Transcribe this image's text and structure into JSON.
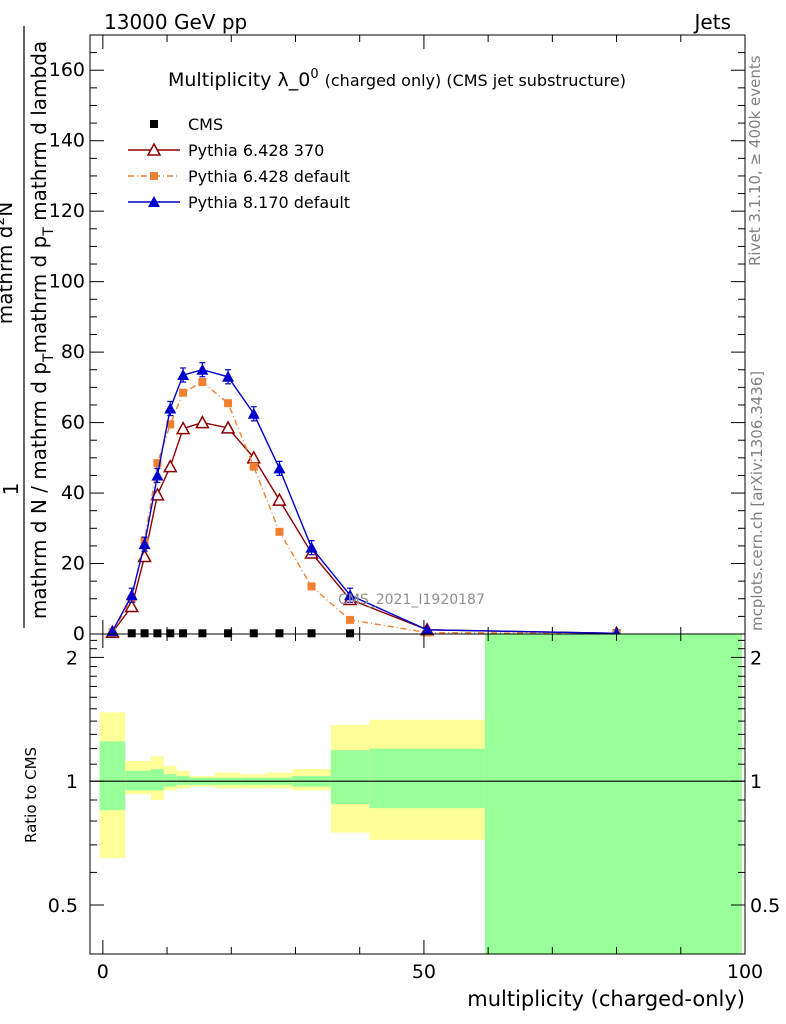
{
  "header": {
    "left": "13000 GeV pp",
    "right": "Jets"
  },
  "side_labels": {
    "rivet": "Rivet 3.1.10, ≥ 400k events",
    "mcplots": "mcplots.cern.ch [arXiv:1306.3436]"
  },
  "watermark": "CMS_2021_I1920187",
  "chart_data": [
    {
      "type": "line",
      "title_main": "Multiplicity λ_0",
      "title_sup": "0",
      "title_rest": "(charged only) (CMS jet substructure)",
      "ylabel_top": "1",
      "ylabel_numer": "mathrm d",
      "ylabel_numer_sup": "2",
      "ylabel_numer_tail": "N",
      "ylabel_denom": "mathrm d p",
      "ylabel_denom_sub": "T",
      "ylabel_denom_tail": " mathrm d lambda",
      "ylabel_left": "mathrm d N / mathrm d p",
      "ylabel_left_sub": "T",
      "ylabel_left_tail": "mathrm d p",
      "xlim": [
        -2,
        100
      ],
      "ylim": [
        0,
        170
      ],
      "yticks": [
        0,
        20,
        40,
        60,
        80,
        100,
        120,
        140,
        160
      ],
      "series": [
        {
          "name": "CMS",
          "color": "#000000",
          "marker": "square",
          "x": [
            4.5,
            6.5,
            8.5,
            10.5,
            12.5,
            15.5,
            19.5,
            23.5,
            27.5,
            32.5,
            38.5,
            80.0
          ],
          "y": [
            0.2,
            0.2,
            0.2,
            0.2,
            0.2,
            0.2,
            0.2,
            0.2,
            0.2,
            0.2,
            0.2,
            0.2
          ]
        },
        {
          "name": "Pythia 6.428 370",
          "color": "#8b0000",
          "marker": "open-triangle",
          "x": [
            1.5,
            4.5,
            6.5,
            8.5,
            10.5,
            12.5,
            15.5,
            19.5,
            23.5,
            27.5,
            32.5,
            38.5,
            50.5,
            80.0
          ],
          "y": [
            0.5,
            7.8,
            22.0,
            39.5,
            47.5,
            58.3,
            60.0,
            58.5,
            50.0,
            38.0,
            23.0,
            9.8,
            1.2,
            0.2
          ]
        },
        {
          "name": "Pythia 6.428 default",
          "color": "#f08030",
          "marker": "square",
          "x": [
            1.5,
            4.5,
            6.5,
            8.5,
            10.5,
            12.5,
            15.5,
            19.5,
            23.5,
            27.5,
            32.5,
            38.5,
            50.5,
            80.0
          ],
          "y": [
            0.5,
            10.0,
            26.5,
            48.5,
            59.5,
            68.5,
            71.5,
            65.5,
            47.5,
            29.0,
            13.5,
            4.0,
            0.4,
            0.1
          ]
        },
        {
          "name": "Pythia 8.170 default",
          "color": "#0000cc",
          "marker": "filled-triangle",
          "x": [
            1.5,
            4.5,
            6.5,
            8.5,
            10.5,
            12.5,
            15.5,
            19.5,
            23.5,
            27.5,
            32.5,
            38.5,
            50.5,
            80.0
          ],
          "y": [
            0.8,
            11.0,
            25.5,
            45.0,
            64.0,
            73.5,
            75.0,
            73.0,
            62.5,
            47.0,
            24.5,
            11.0,
            1.2,
            0.2
          ]
        }
      ]
    },
    {
      "type": "area",
      "title": "",
      "xlabel": "multiplicity (charged-only)",
      "ylabel": "Ratio to CMS",
      "xlim": [
        -2,
        100
      ],
      "ylim": [
        0.38,
        2.28
      ],
      "xticks": [
        0,
        50,
        100
      ],
      "yticks": [
        0.5,
        1,
        2
      ],
      "reference_line": 1,
      "band_colors": {
        "stat": "#99ff99",
        "syst": "#ffff99"
      },
      "bands": [
        {
          "x": [
            -0.5,
            3.5
          ],
          "stat": [
            0.85,
            1.25
          ],
          "syst": [
            0.65,
            1.47
          ]
        },
        {
          "x": [
            3.5,
            7.5
          ],
          "stat": [
            0.95,
            1.06
          ],
          "syst": [
            0.93,
            1.12
          ]
        },
        {
          "x": [
            7.5,
            9.5
          ],
          "stat": [
            0.95,
            1.07
          ],
          "syst": [
            0.9,
            1.15
          ]
        },
        {
          "x": [
            9.5,
            11.5
          ],
          "stat": [
            0.97,
            1.04
          ],
          "syst": [
            0.95,
            1.09
          ]
        },
        {
          "x": [
            11.5,
            13.5
          ],
          "stat": [
            0.98,
            1.03
          ],
          "syst": [
            0.96,
            1.06
          ]
        },
        {
          "x": [
            13.5,
            17.5
          ],
          "stat": [
            0.98,
            1.02
          ],
          "syst": [
            0.97,
            1.03
          ]
        },
        {
          "x": [
            17.5,
            21.5
          ],
          "stat": [
            0.98,
            1.02
          ],
          "syst": [
            0.96,
            1.05
          ]
        },
        {
          "x": [
            21.5,
            25.5
          ],
          "stat": [
            0.98,
            1.02
          ],
          "syst": [
            0.96,
            1.04
          ]
        },
        {
          "x": [
            25.5,
            29.5
          ],
          "stat": [
            0.98,
            1.02
          ],
          "syst": [
            0.96,
            1.05
          ]
        },
        {
          "x": [
            29.5,
            35.5
          ],
          "stat": [
            0.97,
            1.03
          ],
          "syst": [
            0.95,
            1.07
          ]
        },
        {
          "x": [
            35.5,
            41.5
          ],
          "stat": [
            0.88,
            1.19
          ],
          "syst": [
            0.75,
            1.37
          ]
        },
        {
          "x": [
            41.5,
            59.5
          ],
          "stat": [
            0.86,
            1.2
          ],
          "syst": [
            0.72,
            1.41
          ]
        },
        {
          "x": [
            59.5,
            99.5
          ],
          "stat": [
            0.3,
            2.4
          ],
          "syst": [
            0.3,
            2.4
          ]
        }
      ]
    }
  ]
}
